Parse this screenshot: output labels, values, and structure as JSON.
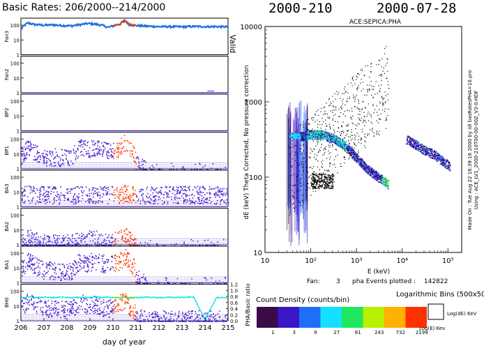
{
  "header": {
    "left_title": "Basic Rates: 206/2000--214/2000",
    "doy_stamp": "2000-210",
    "date_stamp": "2000-07-28"
  },
  "chart_data": [
    {
      "type": "line",
      "panel": "basic-rates",
      "xlabel": "day of year",
      "xlim": [
        206,
        215
      ],
      "x_ticks": [
        "206",
        "207",
        "208",
        "209",
        "210",
        "211",
        "212",
        "213",
        "214",
        "215"
      ],
      "y_scale": "log",
      "right_label": "Valid",
      "channels": [
        {
          "name": "Fan3",
          "y_ticks": [
            "100",
            "10",
            "1"
          ],
          "ylim": [
            1,
            300
          ]
        },
        {
          "name": "Fan2",
          "y_ticks": [
            "100",
            "10",
            "1"
          ],
          "ylim": [
            1,
            300
          ]
        },
        {
          "name": "BP2",
          "y_ticks": [
            "100",
            "10",
            "1"
          ],
          "ylim": [
            1,
            300
          ]
        },
        {
          "name": "BP1",
          "y_ticks": [
            "100",
            "10",
            "1"
          ],
          "ylim": [
            1,
            300
          ]
        },
        {
          "name": "BA3",
          "y_ticks": [
            "100",
            "10",
            "1"
          ],
          "ylim": [
            1,
            300
          ]
        },
        {
          "name": "BA2",
          "y_ticks": [
            "100",
            "10",
            "1"
          ],
          "ylim": [
            1,
            300
          ]
        },
        {
          "name": "BA1",
          "y_ticks": [
            "100",
            "10",
            "1"
          ],
          "ylim": [
            1,
            300
          ]
        },
        {
          "name": "BH0",
          "y_ticks": [
            "100",
            "10",
            "1"
          ],
          "ylim": [
            1,
            300
          ]
        }
      ],
      "ratio_axis": {
        "label": "PHA/Basic ratio",
        "ticks": [
          "1.2",
          "1.0",
          "0.8",
          "0.6",
          "0.4",
          "0.2",
          "0.0"
        ],
        "ylim": [
          0,
          1.2
        ]
      },
      "series_profile": {
        "x": [
          206.0,
          206.3,
          206.6,
          207.0,
          207.4,
          207.8,
          208.2,
          208.6,
          208.9,
          209.2,
          209.5,
          209.8,
          210.0,
          210.3,
          210.5,
          210.7,
          211.0,
          211.5,
          212.0,
          212.5,
          213.0,
          213.5,
          214.0,
          214.5,
          215.0
        ],
        "Fan3": [
          50,
          140,
          110,
          100,
          105,
          95,
          90,
          110,
          130,
          120,
          100,
          70,
          90,
          120,
          200,
          110,
          95,
          85,
          80,
          80,
          78,
          82,
          80,
          80,
          78
        ],
        "BP1": [
          12,
          35,
          20,
          10,
          10,
          8,
          9,
          40,
          30,
          45,
          30,
          25,
          30,
          40,
          80,
          35,
          3,
          1,
          1,
          1,
          1,
          1,
          1,
          1,
          1
        ],
        "BA3": [
          10,
          11,
          10,
          10,
          10,
          10,
          10,
          10,
          10,
          10,
          10,
          10,
          10,
          10,
          12,
          10,
          10,
          10,
          10,
          10,
          10,
          10,
          10,
          10,
          10
        ],
        "BA2": [
          2,
          5,
          3,
          2,
          2,
          2,
          2,
          3,
          4,
          5,
          3,
          2,
          3,
          4,
          6,
          3,
          1,
          1,
          1,
          1,
          1,
          1,
          1,
          1,
          1
        ],
        "BA1": [
          12,
          40,
          22,
          11,
          10,
          9,
          10,
          45,
          32,
          50,
          33,
          28,
          32,
          45,
          85,
          38,
          3,
          1,
          1,
          1,
          1,
          1,
          1,
          1,
          1
        ],
        "BH0": [
          12,
          30,
          18,
          10,
          10,
          9,
          9,
          25,
          15,
          20,
          12,
          10,
          15,
          25,
          40,
          15,
          3,
          2,
          2,
          2,
          2,
          2,
          2,
          2,
          2
        ],
        "ratio": [
          0.75,
          0.78,
          0.76,
          0.77,
          0.76,
          0.78,
          0.75,
          0.77,
          0.76,
          0.78,
          0.76,
          0.77,
          0.76,
          0.76,
          0.77,
          0.75,
          0.76,
          0.77,
          0.76,
          0.77,
          0.76,
          0.78,
          0.05,
          0.76,
          0.76
        ]
      },
      "colors": {
        "Fan3": "#1e6fe0",
        "counts": "#4a1fd0",
        "selected": "#ff3b00",
        "ratio": "#00e5e5",
        "ratio_selected": "#90e000"
      }
    },
    {
      "type": "heatmap",
      "panel": "pha-scatter",
      "title": "ACE:SEPICA:PHA",
      "xlabel": "E (keV)",
      "ylabel": "dE (keV) Theta Corrected, No pressure correction",
      "x_scale": "log",
      "y_scale": "log",
      "xlim": [
        10,
        200000
      ],
      "ylim": [
        10,
        10000
      ],
      "x_ticks": [
        "10",
        "10²",
        "10³",
        "10⁴",
        "10⁵"
      ],
      "y_ticks": [
        "10",
        "100",
        "1000",
        "10000"
      ],
      "side_note_1": "Made On : Tue Aug 22 16:39:16 2000  by idl basRatesPHA=10.pro",
      "side_note_2": "Using : ACE_LV1_2000-210T00-00-00Z_V3-0.HDF",
      "fan_label": "Fan:",
      "fan_value": "3",
      "events_label": "pha Events plotted :",
      "events_value": "142822",
      "tracks": [
        {
          "name": "dense",
          "E": [
            60,
            80,
            100,
            150,
            200,
            300,
            400,
            600,
            800,
            1000,
            1500,
            2000,
            3000,
            4000,
            5000
          ],
          "dE": [
            350,
            360,
            370,
            370,
            360,
            330,
            300,
            250,
            210,
            180,
            140,
            120,
            100,
            90,
            80
          ]
        },
        {
          "name": "upper",
          "E": [
            12000,
            20000,
            30000,
            50000,
            80000,
            110000
          ],
          "dE": [
            320,
            270,
            230,
            200,
            160,
            140
          ]
        }
      ]
    }
  ],
  "legend": {
    "title": "Count Density (counts/bin)",
    "bins_label": "Logarithmic Bins (500x500)",
    "bin_box_y_label": "Log(dE) KeV",
    "bin_box_x_label": "Log(E) Kev",
    "bins": [
      {
        "label": "1",
        "color": "#3a0a4a"
      },
      {
        "label": "3",
        "color": "#3a16c8"
      },
      {
        "label": "9",
        "color": "#1e6ff5"
      },
      {
        "label": "27",
        "color": "#15e0ff"
      },
      {
        "label": "81",
        "color": "#1fe860"
      },
      {
        "label": "243",
        "color": "#b7f000"
      },
      {
        "label": "732",
        "color": "#ffb000"
      },
      {
        "label": "2199",
        "color": "#ff3000"
      }
    ]
  }
}
